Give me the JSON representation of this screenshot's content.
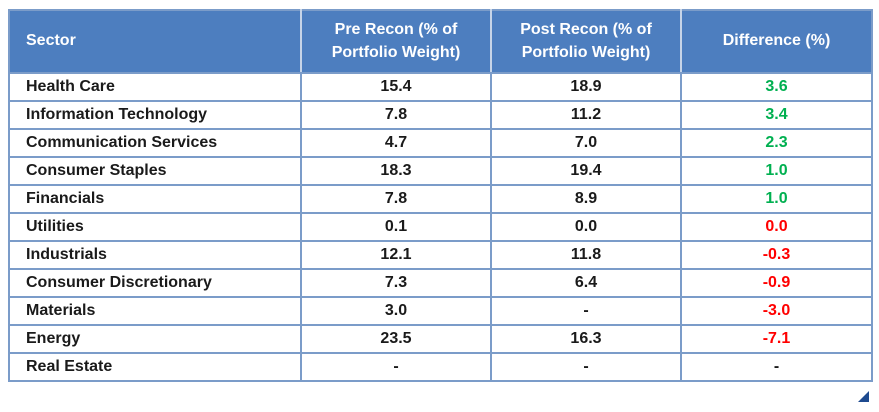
{
  "colors": {
    "header_bg": "#4d7ebf",
    "header_text": "#ffffff",
    "border": "#7b9cc9",
    "positive": "#00b050",
    "negative": "#ff0000",
    "neutral": "#1a1a1a"
  },
  "table": {
    "columns": [
      {
        "id": "sector",
        "label": "Sector",
        "align": "left"
      },
      {
        "id": "pre",
        "label": "Pre Recon (% of Portfolio Weight)",
        "align": "center"
      },
      {
        "id": "post",
        "label": "Post Recon (% of Portfolio Weight)",
        "align": "center"
      },
      {
        "id": "diff",
        "label": "Difference (%)",
        "align": "center"
      }
    ],
    "rows": [
      {
        "sector": "Health Care",
        "pre": "15.4",
        "post": "18.9",
        "diff": "3.6",
        "diff_trend": "positive"
      },
      {
        "sector": "Information Technology",
        "pre": "7.8",
        "post": "11.2",
        "diff": "3.4",
        "diff_trend": "positive"
      },
      {
        "sector": "Communication Services",
        "pre": "4.7",
        "post": "7.0",
        "diff": "2.3",
        "diff_trend": "positive"
      },
      {
        "sector": "Consumer Staples",
        "pre": "18.3",
        "post": "19.4",
        "diff": "1.0",
        "diff_trend": "positive"
      },
      {
        "sector": "Financials",
        "pre": "7.8",
        "post": "8.9",
        "diff": "1.0",
        "diff_trend": "positive"
      },
      {
        "sector": "Utilities",
        "pre": "0.1",
        "post": "0.0",
        "diff": "0.0",
        "diff_trend": "negative"
      },
      {
        "sector": "Industrials",
        "pre": "12.1",
        "post": "11.8",
        "diff": "-0.3",
        "diff_trend": "negative"
      },
      {
        "sector": "Consumer Discretionary",
        "pre": "7.3",
        "post": "6.4",
        "diff": "-0.9",
        "diff_trend": "negative"
      },
      {
        "sector": "Materials",
        "pre": "3.0",
        "post": "-",
        "diff": "-3.0",
        "diff_trend": "negative"
      },
      {
        "sector": "Energy",
        "pre": "23.5",
        "post": "16.3",
        "diff": "-7.1",
        "diff_trend": "negative"
      },
      {
        "sector": "Real Estate",
        "pre": "-",
        "post": "-",
        "diff": "-",
        "diff_trend": "neutral"
      }
    ]
  },
  "chart_data": {
    "type": "table",
    "columns": [
      "Sector",
      "Pre Recon (% of Portfolio Weight)",
      "Post Recon (% of Portfolio Weight)",
      "Difference (%)"
    ],
    "rows": [
      [
        "Health Care",
        15.4,
        18.9,
        3.6
      ],
      [
        "Information Technology",
        7.8,
        11.2,
        3.4
      ],
      [
        "Communication Services",
        4.7,
        7.0,
        2.3
      ],
      [
        "Consumer Staples",
        18.3,
        19.4,
        1.0
      ],
      [
        "Financials",
        7.8,
        8.9,
        1.0
      ],
      [
        "Utilities",
        0.1,
        0.0,
        0.0
      ],
      [
        "Industrials",
        12.1,
        11.8,
        -0.3
      ],
      [
        "Consumer Discretionary",
        7.3,
        6.4,
        -0.9
      ],
      [
        "Materials",
        3.0,
        null,
        -3.0
      ],
      [
        "Energy",
        23.5,
        16.3,
        -7.1
      ],
      [
        "Real Estate",
        null,
        null,
        null
      ]
    ]
  }
}
